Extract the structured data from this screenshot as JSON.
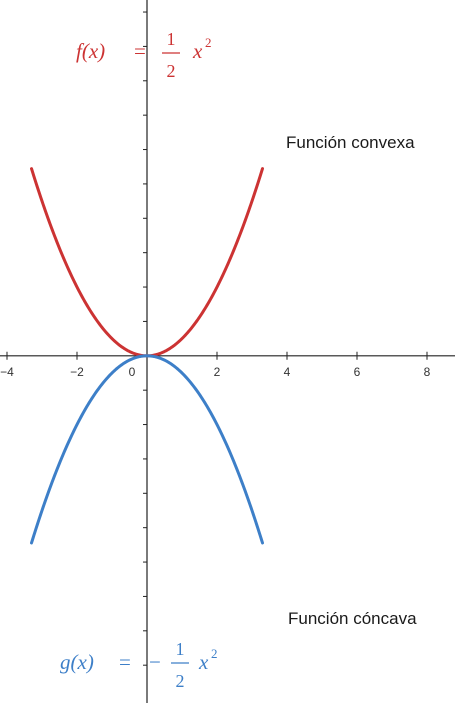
{
  "chart_data": {
    "type": "line",
    "xlim": [
      -4.2,
      8.8
    ],
    "ylim": [
      -10.1,
      10.35
    ],
    "x_ticks": [
      -4,
      -2,
      0,
      2,
      4,
      6,
      8
    ],
    "x_tick_labels": [
      "−4",
      "−2",
      "0",
      "2",
      "4",
      "6",
      "8"
    ],
    "y_ticks": [
      -9,
      -8,
      -7,
      -6,
      -5,
      -4,
      -3,
      -2,
      -1,
      1,
      2,
      3,
      4,
      5,
      6,
      7,
      8,
      9,
      10
    ],
    "grid": false,
    "series": [
      {
        "name": "f(x) = 1/2 x²",
        "color": "#cc3333",
        "x": [
          -3.3,
          -3.0,
          -2.5,
          -2.0,
          -1.5,
          -1.0,
          -0.5,
          0,
          0.5,
          1.0,
          1.5,
          2.0,
          2.5,
          3.0,
          3.3
        ],
        "y": [
          5.445,
          4.5,
          3.125,
          2.0,
          1.125,
          0.5,
          0.125,
          0,
          0.125,
          0.5,
          1.125,
          2.0,
          3.125,
          4.5,
          5.445
        ]
      },
      {
        "name": "g(x) = −1/2 x²",
        "color": "#3d7fc8",
        "x": [
          -3.3,
          -3.0,
          -2.5,
          -2.0,
          -1.5,
          -1.0,
          -0.5,
          0,
          0.5,
          1.0,
          1.5,
          2.0,
          2.5,
          3.0,
          3.3
        ],
        "y": [
          -5.445,
          -4.5,
          -3.125,
          -2.0,
          -1.125,
          -0.5,
          -0.125,
          0,
          -0.125,
          -0.5,
          -1.125,
          -2.0,
          -3.125,
          -4.5,
          -5.445
        ]
      }
    ],
    "annotations": [
      {
        "text": "Función convexa"
      },
      {
        "text": "Función cóncava"
      }
    ],
    "formulas": {
      "f": {
        "lhs": "f(x)",
        "eq": "=",
        "sign": "",
        "num": "1",
        "den": "2",
        "var": "x",
        "exp": "2"
      },
      "g": {
        "lhs": "g(x)",
        "eq": "=",
        "sign": "−",
        "num": "1",
        "den": "2",
        "var": "x",
        "exp": "2"
      }
    }
  }
}
